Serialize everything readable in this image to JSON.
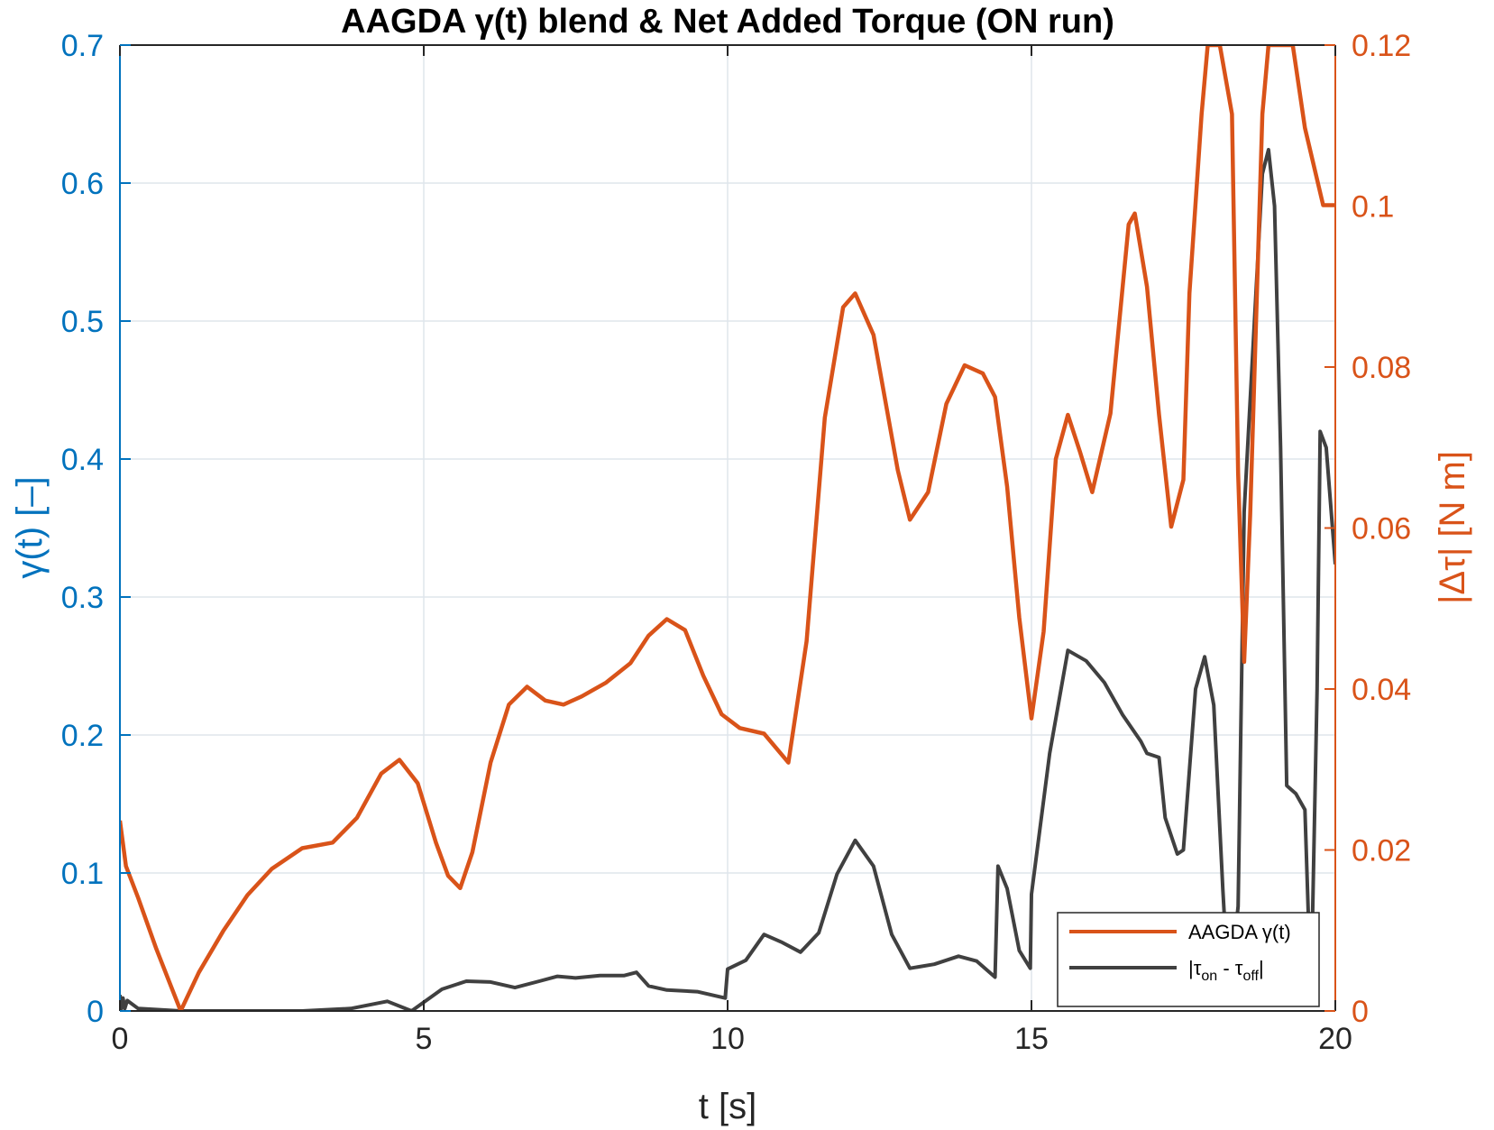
{
  "chart_data": {
    "type": "line",
    "title": "AAGDA γ(t) blend & Net Added Torque (ON run)",
    "xlabel": "t [s]",
    "ylabel_left": "γ(t) [–]",
    "ylabel_right": "|Δτ| [N m]",
    "xlim": [
      0,
      20
    ],
    "ylim_left": [
      0,
      0.7
    ],
    "ylim_right": [
      0,
      0.12
    ],
    "x_ticks": [
      0,
      5,
      10,
      15,
      20
    ],
    "x_tick_labels": [
      "0",
      "5",
      "10",
      "15",
      "20"
    ],
    "y_left_ticks": [
      0,
      0.1,
      0.2,
      0.3,
      0.4,
      0.5,
      0.6,
      0.7
    ],
    "y_left_tick_labels": [
      "0",
      "0.1",
      "0.2",
      "0.3",
      "0.4",
      "0.5",
      "0.6",
      "0.7"
    ],
    "y_right_ticks": [
      0,
      0.02,
      0.04,
      0.06,
      0.08,
      0.1,
      0.12
    ],
    "y_right_tick_labels": [
      "0",
      "0.02",
      "0.04",
      "0.06",
      "0.08",
      "0.1",
      "0.12"
    ],
    "grid": true,
    "legend_placement": "bottom-right",
    "colors": {
      "left_axis": "#0072BD",
      "right_axis": "#D95319",
      "gamma": "#D95319",
      "torque": "#404040"
    },
    "series": [
      {
        "name": "AAGDA γ(t)",
        "label_main": "AAGDA γ",
        "label_suffix": "(t)",
        "axis": "left",
        "points": [
          [
            0,
            0.138
          ],
          [
            0.1,
            0.105
          ],
          [
            0.3,
            0.082
          ],
          [
            0.6,
            0.045
          ],
          [
            1.0,
            0.0
          ],
          [
            1.3,
            0.028
          ],
          [
            1.7,
            0.058
          ],
          [
            2.1,
            0.084
          ],
          [
            2.5,
            0.103
          ],
          [
            3.0,
            0.118
          ],
          [
            3.5,
            0.122
          ],
          [
            3.9,
            0.14
          ],
          [
            4.3,
            0.172
          ],
          [
            4.6,
            0.182
          ],
          [
            4.9,
            0.165
          ],
          [
            5.2,
            0.122
          ],
          [
            5.4,
            0.098
          ],
          [
            5.6,
            0.089
          ],
          [
            5.8,
            0.115
          ],
          [
            6.1,
            0.18
          ],
          [
            6.4,
            0.222
          ],
          [
            6.7,
            0.235
          ],
          [
            7.0,
            0.225
          ],
          [
            7.3,
            0.222
          ],
          [
            7.6,
            0.228
          ],
          [
            8.0,
            0.238
          ],
          [
            8.4,
            0.252
          ],
          [
            8.7,
            0.272
          ],
          [
            9.0,
            0.284
          ],
          [
            9.3,
            0.276
          ],
          [
            9.6,
            0.243
          ],
          [
            9.9,
            0.215
          ],
          [
            10.2,
            0.205
          ],
          [
            10.6,
            0.201
          ],
          [
            11.0,
            0.18
          ],
          [
            11.3,
            0.268
          ],
          [
            11.6,
            0.43
          ],
          [
            11.9,
            0.51
          ],
          [
            12.1,
            0.52
          ],
          [
            12.4,
            0.49
          ],
          [
            12.8,
            0.392
          ],
          [
            13.0,
            0.356
          ],
          [
            13.3,
            0.376
          ],
          [
            13.6,
            0.44
          ],
          [
            13.9,
            0.468
          ],
          [
            14.2,
            0.462
          ],
          [
            14.4,
            0.445
          ],
          [
            14.6,
            0.38
          ],
          [
            14.8,
            0.285
          ],
          [
            15.0,
            0.212
          ],
          [
            15.2,
            0.275
          ],
          [
            15.4,
            0.4
          ],
          [
            15.6,
            0.432
          ],
          [
            15.8,
            0.405
          ],
          [
            16.0,
            0.376
          ],
          [
            16.3,
            0.433
          ],
          [
            16.6,
            0.57
          ],
          [
            16.7,
            0.578
          ],
          [
            16.9,
            0.525
          ],
          [
            17.1,
            0.432
          ],
          [
            17.3,
            0.351
          ],
          [
            17.5,
            0.385
          ],
          [
            17.6,
            0.52
          ],
          [
            17.8,
            0.65
          ],
          [
            17.9,
            0.73
          ],
          [
            18.1,
            0.73
          ],
          [
            18.3,
            0.65
          ],
          [
            18.4,
            0.39
          ],
          [
            18.5,
            0.253
          ],
          [
            18.6,
            0.36
          ],
          [
            18.8,
            0.65
          ],
          [
            18.9,
            0.73
          ],
          [
            19.3,
            0.73
          ],
          [
            19.5,
            0.64
          ],
          [
            19.8,
            0.584
          ],
          [
            20.0,
            0.584
          ]
        ]
      },
      {
        "name": "|τon - τoff|",
        "label_parts": {
          "open": "|τ",
          "sub1": "on",
          "mid": " - τ",
          "sub2": "off",
          "close": "|"
        },
        "axis": "right",
        "points": [
          [
            0,
            0.002
          ],
          [
            0.02,
            0.0002
          ],
          [
            0.05,
            0.0016
          ],
          [
            0.08,
            0.0003
          ],
          [
            0.12,
            0.0013
          ],
          [
            0.3,
            0.0003
          ],
          [
            1.0,
            0.0
          ],
          [
            3.0,
            0.0
          ],
          [
            3.8,
            0.0003
          ],
          [
            4.4,
            0.0012
          ],
          [
            4.8,
            0.0
          ],
          [
            5.3,
            0.0027
          ],
          [
            5.7,
            0.0037
          ],
          [
            6.1,
            0.0036
          ],
          [
            6.5,
            0.0029
          ],
          [
            6.9,
            0.0037
          ],
          [
            7.2,
            0.0043
          ],
          [
            7.5,
            0.0041
          ],
          [
            7.9,
            0.0044
          ],
          [
            8.3,
            0.0044
          ],
          [
            8.5,
            0.0048
          ],
          [
            8.7,
            0.0031
          ],
          [
            9.0,
            0.0026
          ],
          [
            9.5,
            0.0024
          ],
          [
            9.96,
            0.0016
          ],
          [
            10.0,
            0.0052
          ],
          [
            10.3,
            0.0063
          ],
          [
            10.6,
            0.0095
          ],
          [
            10.9,
            0.0085
          ],
          [
            11.2,
            0.0073
          ],
          [
            11.5,
            0.0097
          ],
          [
            11.8,
            0.017
          ],
          [
            12.1,
            0.0212
          ],
          [
            12.4,
            0.018
          ],
          [
            12.7,
            0.0095
          ],
          [
            13.0,
            0.0053
          ],
          [
            13.4,
            0.0058
          ],
          [
            13.8,
            0.0068
          ],
          [
            14.1,
            0.0062
          ],
          [
            14.4,
            0.0042
          ],
          [
            14.45,
            0.018
          ],
          [
            14.6,
            0.0152
          ],
          [
            14.8,
            0.0075
          ],
          [
            14.98,
            0.0053
          ],
          [
            15.0,
            0.0145
          ],
          [
            15.3,
            0.032
          ],
          [
            15.6,
            0.0448
          ],
          [
            15.9,
            0.0435
          ],
          [
            16.2,
            0.0408
          ],
          [
            16.5,
            0.0368
          ],
          [
            16.8,
            0.0335
          ],
          [
            16.9,
            0.032
          ],
          [
            17.1,
            0.0315
          ],
          [
            17.2,
            0.024
          ],
          [
            17.4,
            0.0195
          ],
          [
            17.5,
            0.02
          ],
          [
            17.7,
            0.04
          ],
          [
            17.85,
            0.044
          ],
          [
            18.0,
            0.038
          ],
          [
            18.15,
            0.015
          ],
          [
            18.25,
            0.0018
          ],
          [
            18.4,
            0.013
          ],
          [
            18.5,
            0.062
          ],
          [
            18.8,
            0.104
          ],
          [
            18.9,
            0.107
          ],
          [
            19.0,
            0.1
          ],
          [
            19.1,
            0.07
          ],
          [
            19.2,
            0.028
          ],
          [
            19.35,
            0.027
          ],
          [
            19.5,
            0.025
          ],
          [
            19.6,
            0.0018
          ],
          [
            19.7,
            0.04
          ],
          [
            19.75,
            0.072
          ],
          [
            19.85,
            0.07
          ],
          [
            20.0,
            0.0555
          ]
        ]
      }
    ]
  }
}
